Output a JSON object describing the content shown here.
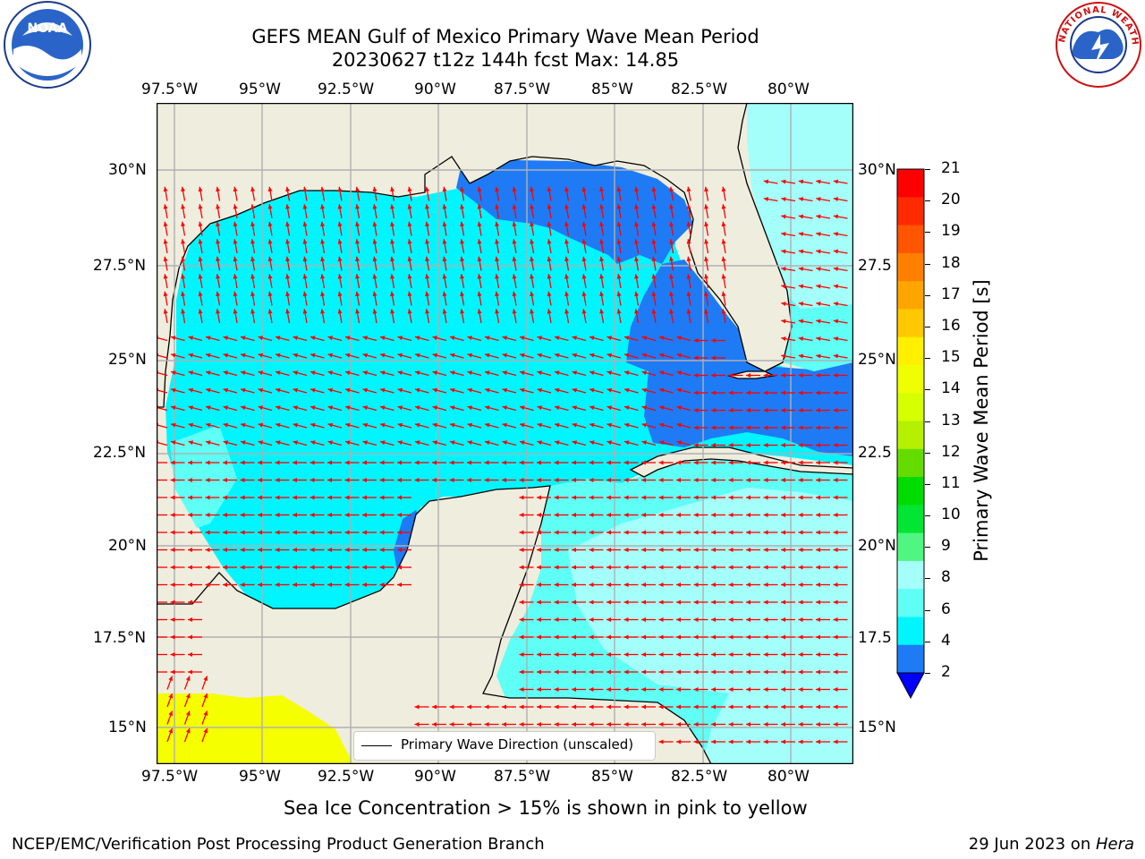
{
  "header": {
    "title_line1": "GEFS MEAN Gulf of Mexico Primary Wave Mean Period",
    "title_line2": "20230627 t12z 144h fcst   Max: 14.85"
  },
  "logos": {
    "left": {
      "icon": "noaa-logo",
      "text": "NOAA"
    },
    "right": {
      "icon": "national-weather-service-logo",
      "text": "NATIONAL WEATHER SERVICE"
    }
  },
  "map": {
    "lon_labels": [
      "97.5°W",
      "95°W",
      "92.5°W",
      "90°W",
      "87.5°W",
      "85°W",
      "82.5°W",
      "80°W"
    ],
    "lat_labels_left": [
      "30°N",
      "27.5°N",
      "25°N",
      "22.5°N",
      "20°N",
      "17.5°N",
      "15°N"
    ],
    "lat_labels_right": [
      "30°N",
      "27.5",
      "25°N",
      "22.5",
      "20°N",
      "17.5",
      "15°N"
    ],
    "legend_label": "Primary Wave Direction (unscaled)",
    "colors": {
      "land": "#efedde",
      "ocean_under_4": "#1e7bf5",
      "ocean_4_6": "#00f5ff",
      "ocean_6_8": "#5ffff5",
      "ocean_8_9": "#a4fffa",
      "sea_ice_demo": "#f5ff00",
      "arrows": "#ff0000",
      "grid": "#b0b0b0"
    }
  },
  "colorbar": {
    "label": "Primary Wave Mean Period [s]",
    "ticks": [
      "21",
      "20",
      "19",
      "18",
      "17",
      "16",
      "15",
      "14",
      "13",
      "12",
      "11",
      "10",
      "9",
      "8",
      "6",
      "4",
      "2"
    ],
    "colors": [
      "#ff0000",
      "#ff2a00",
      "#ff5500",
      "#ff7f00",
      "#ffa500",
      "#ffc800",
      "#fff000",
      "#f0ff00",
      "#d6ff00",
      "#b4f000",
      "#64dc00",
      "#00dc00",
      "#00e632",
      "#50f582",
      "#a4fffa",
      "#5ffff5",
      "#00f5ff",
      "#1e7bf5",
      "#0000ff"
    ]
  },
  "note": "Sea Ice Concentration > 15% is shown in pink to yellow",
  "footer": {
    "left": "NCEP/EMC/Verification Post Processing Product Generation Branch",
    "right_date": "29 Jun 2023 on ",
    "right_host": "Hera"
  }
}
